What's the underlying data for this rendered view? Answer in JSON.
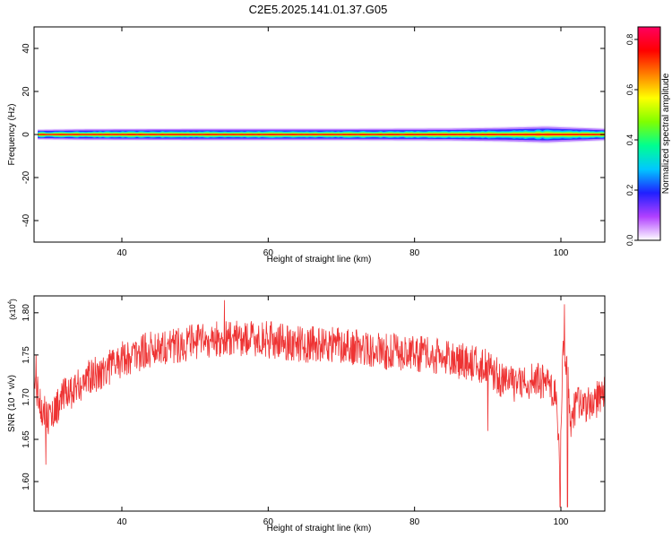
{
  "title": "C2E5.2025.141.01.37.G05",
  "chart_data": [
    {
      "type": "heatmap",
      "xlabel": "Height of straight line (km)",
      "ylabel": "Frequency (Hz)",
      "xlim": [
        28,
        106
      ],
      "ylim": [
        -50,
        50
      ],
      "x_ticks": [
        40,
        60,
        80,
        100
      ],
      "y_ticks": [
        40,
        20,
        0,
        -20,
        -40
      ],
      "x_tick_labels": [
        "40",
        "60",
        "80",
        "100"
      ],
      "y_tick_labels": [
        "40",
        "20",
        "0",
        "-20",
        "-40"
      ],
      "band": {
        "center_frequency": 0,
        "profile": [
          {
            "km": 28.5,
            "half_width_hz": 2.5,
            "peak": 0.8
          },
          {
            "km": 35,
            "half_width_hz": 2.8,
            "peak": 0.75
          },
          {
            "km": 50,
            "half_width_hz": 3.0,
            "peak": 0.72
          },
          {
            "km": 70,
            "half_width_hz": 3.0,
            "peak": 0.72
          },
          {
            "km": 85,
            "half_width_hz": 3.2,
            "peak": 0.65
          },
          {
            "km": 92,
            "half_width_hz": 3.6,
            "peak": 0.6
          },
          {
            "km": 98,
            "half_width_hz": 4.2,
            "peak": 0.65
          },
          {
            "km": 102,
            "half_width_hz": 3.6,
            "peak": 0.55
          },
          {
            "km": 106,
            "half_width_hz": 3.0,
            "peak": 0.82
          }
        ]
      },
      "colorbar": {
        "label": "Normalized spectral amplitude",
        "range": [
          0.0,
          0.85
        ],
        "ticks": [
          0.0,
          0.2,
          0.4,
          0.6,
          0.8
        ],
        "tick_labels": [
          "0.0",
          "0.2",
          "0.4",
          "0.6",
          "0.8"
        ],
        "colors": [
          "#ffffff",
          "#b040ff",
          "#2020ff",
          "#00c8ff",
          "#00ff90",
          "#80ff00",
          "#ffff00",
          "#ff8000",
          "#ff0000",
          "#ff0060"
        ]
      }
    },
    {
      "type": "line",
      "xlabel": "Height of straight line (km)",
      "ylabel": "SNR (10 * v/v)",
      "y_multiplier": "(x10",
      "y_multiplier_exp": "4",
      "y_multiplier_close": ")",
      "xlim": [
        28,
        106
      ],
      "ylim": [
        1.565,
        1.82
      ],
      "x_ticks": [
        40,
        60,
        80,
        100
      ],
      "y_ticks": [
        1.8,
        1.75,
        1.7,
        1.65,
        1.6
      ],
      "x_tick_labels": [
        "40",
        "60",
        "80",
        "100"
      ],
      "y_tick_labels": [
        "1.80",
        "1.75",
        "1.70",
        "1.65",
        "1.60"
      ],
      "line_color": "#ee3333",
      "trend": [
        {
          "km": 28.0,
          "snr": 1.72
        },
        {
          "km": 29.0,
          "snr": 1.69
        },
        {
          "km": 30.0,
          "snr": 1.675
        },
        {
          "km": 32.0,
          "snr": 1.7
        },
        {
          "km": 35.0,
          "snr": 1.72
        },
        {
          "km": 40.0,
          "snr": 1.745
        },
        {
          "km": 45.0,
          "snr": 1.76
        },
        {
          "km": 50.0,
          "snr": 1.765
        },
        {
          "km": 55.0,
          "snr": 1.77
        },
        {
          "km": 60.0,
          "snr": 1.768
        },
        {
          "km": 65.0,
          "snr": 1.762
        },
        {
          "km": 70.0,
          "snr": 1.762
        },
        {
          "km": 75.0,
          "snr": 1.755
        },
        {
          "km": 80.0,
          "snr": 1.752
        },
        {
          "km": 85.0,
          "snr": 1.745
        },
        {
          "km": 88.0,
          "snr": 1.74
        },
        {
          "km": 90.0,
          "snr": 1.735
        },
        {
          "km": 92.0,
          "snr": 1.72
        },
        {
          "km": 94.0,
          "snr": 1.715
        },
        {
          "km": 96.0,
          "snr": 1.72
        },
        {
          "km": 98.0,
          "snr": 1.72
        },
        {
          "km": 99.3,
          "snr": 1.7
        },
        {
          "km": 99.8,
          "snr": 1.62
        },
        {
          "km": 100.3,
          "snr": 1.75
        },
        {
          "km": 100.8,
          "snr": 1.74
        },
        {
          "km": 101.3,
          "snr": 1.67
        },
        {
          "km": 102.0,
          "snr": 1.69
        },
        {
          "km": 104.0,
          "snr": 1.69
        },
        {
          "km": 106.0,
          "snr": 1.705
        }
      ],
      "noise_amplitude": 0.022,
      "spikes": [
        {
          "km": 28.3,
          "snr": 1.75
        },
        {
          "km": 29.6,
          "snr": 1.62
        },
        {
          "km": 54.0,
          "snr": 1.815
        },
        {
          "km": 90.0,
          "snr": 1.66
        },
        {
          "km": 99.9,
          "snr": 1.57
        },
        {
          "km": 100.5,
          "snr": 1.81
        },
        {
          "km": 100.9,
          "snr": 1.57
        }
      ]
    }
  ]
}
